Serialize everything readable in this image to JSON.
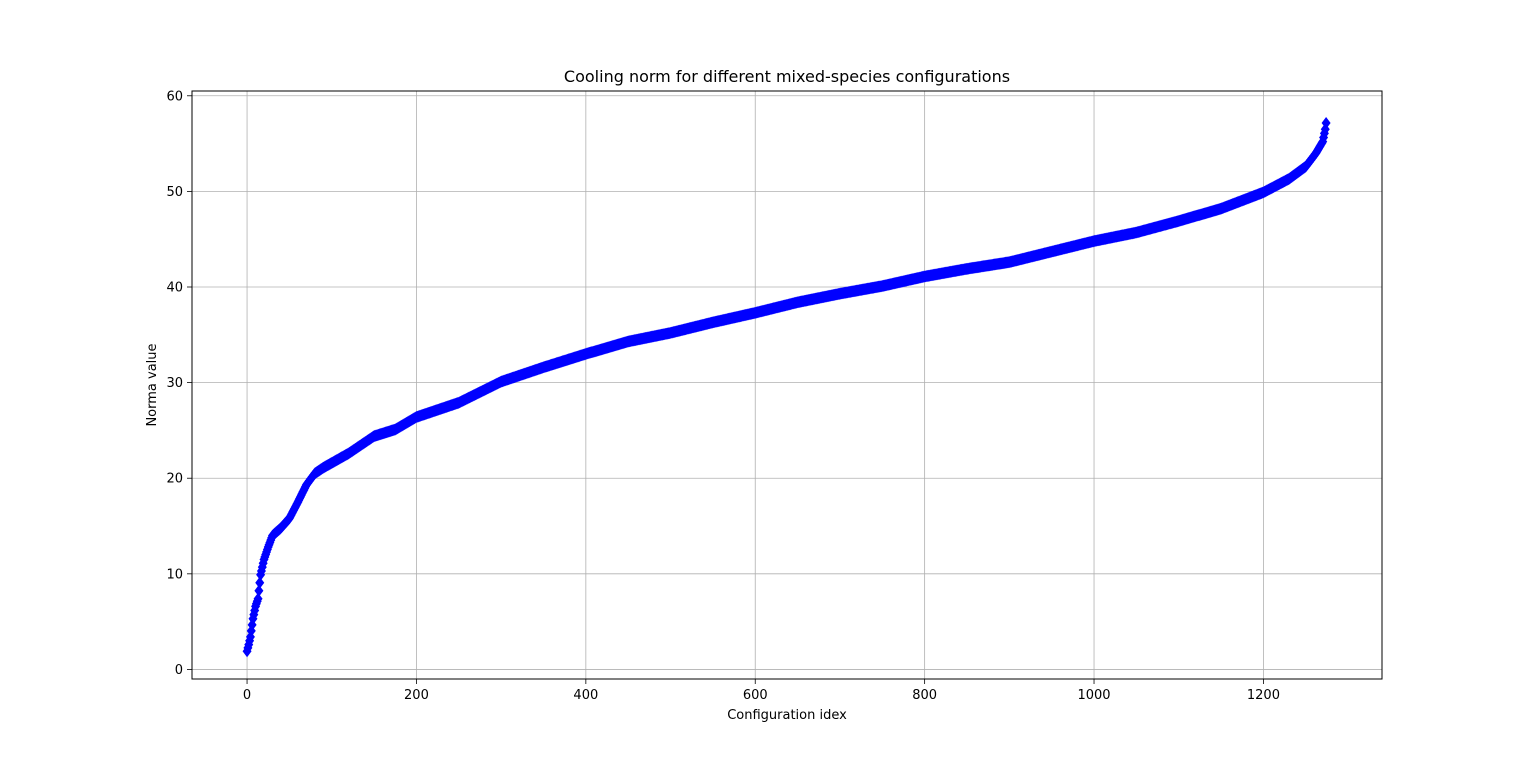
{
  "chart_data": {
    "type": "scatter",
    "title": "Cooling norm for different mixed-species configurations",
    "xlabel": "Configuration idex",
    "ylabel": "Norma value",
    "xlim": [
      -65,
      1340
    ],
    "ylim": [
      -1,
      60.5
    ],
    "xticks": [
      0,
      200,
      400,
      600,
      800,
      1000,
      1200
    ],
    "yticks": [
      0,
      10,
      20,
      30,
      40,
      50,
      60
    ],
    "grid": true,
    "marker": "diamond",
    "color": "#0000ff",
    "n_points": 1275,
    "curve_profile": [
      [
        0,
        1.9
      ],
      [
        2,
        2.6
      ],
      [
        4,
        3.4
      ],
      [
        7,
        5.3
      ],
      [
        10,
        6.6
      ],
      [
        13,
        7.4
      ],
      [
        16,
        9.9
      ],
      [
        20,
        11.5
      ],
      [
        25,
        12.8
      ],
      [
        30,
        14.0
      ],
      [
        40,
        14.8
      ],
      [
        50,
        15.8
      ],
      [
        60,
        17.5
      ],
      [
        70,
        19.3
      ],
      [
        80,
        20.5
      ],
      [
        90,
        21.1
      ],
      [
        100,
        21.6
      ],
      [
        120,
        22.6
      ],
      [
        150,
        24.4
      ],
      [
        175,
        25.1
      ],
      [
        200,
        26.4
      ],
      [
        250,
        27.9
      ],
      [
        300,
        30.1
      ],
      [
        350,
        31.6
      ],
      [
        400,
        33.0
      ],
      [
        450,
        34.3
      ],
      [
        500,
        35.2
      ],
      [
        550,
        36.3
      ],
      [
        600,
        37.3
      ],
      [
        650,
        38.4
      ],
      [
        700,
        39.3
      ],
      [
        750,
        40.1
      ],
      [
        800,
        41.1
      ],
      [
        850,
        41.9
      ],
      [
        900,
        42.6
      ],
      [
        950,
        43.7
      ],
      [
        1000,
        44.8
      ],
      [
        1050,
        45.7
      ],
      [
        1100,
        46.9
      ],
      [
        1150,
        48.2
      ],
      [
        1200,
        49.9
      ],
      [
        1230,
        51.3
      ],
      [
        1250,
        52.6
      ],
      [
        1262,
        54.0
      ],
      [
        1270,
        55.2
      ],
      [
        1273,
        56.5
      ],
      [
        1275,
        57.8
      ]
    ]
  }
}
